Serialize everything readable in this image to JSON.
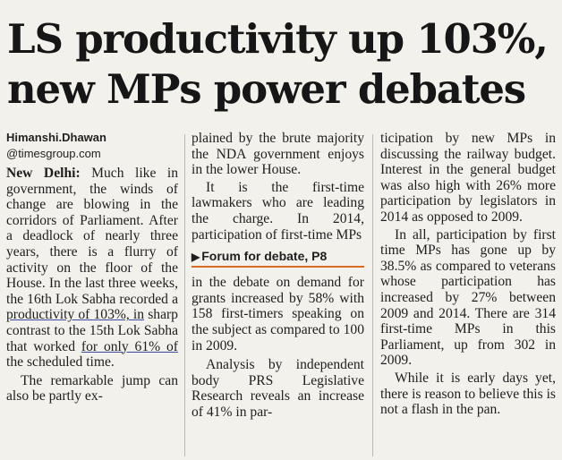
{
  "headline": {
    "line1": "LS productivity up 103%,",
    "line2": "new MPs power debates"
  },
  "byline": {
    "author": "Himanshi.Dhawan",
    "handle": "@timesgroup.com"
  },
  "column1": {
    "dateline": "New Delhi:",
    "p1_text": " Much like in government, the winds of change are blowing in the corridors of Parliament. After a deadlock of nearly three years, there is a flurry of activity on the floor of the House. In the last three weeks, the 16th Lok Sabha recorded a ",
    "p1_underline1": "productivity of 103%, in",
    "p1_mid": " sharp contrast to the 15th Lok Sabha that worked ",
    "p1_underline2": "for only 61% of",
    "p1_end": " the scheduled time.",
    "p2": "The remarkable jump can also be partly ex-"
  },
  "column2": {
    "p1": "plained by the brute majority the NDA government enjoys in the lower House.",
    "p2": "It is the first-time lawmakers who are leading the charge. In 2014, participation of first-time MPs",
    "crossref": "Forum for debate, P8",
    "p3": "in the debate on demand for grants increased by 58% with 158 first-timers speaking on the subject as compared to 100 in 2009.",
    "p4": "Analysis by independent body PRS Legislative Research reveals an increase of 41% in par-"
  },
  "column3": {
    "p1": "ticipation by new MPs in discussing the railway budget. Interest in the general budget was also high with 26% more participation by legislators in 2014 as opposed to 2009.",
    "p2": "In all, participation by first time MPs has gone up by 38.5% as compared to veterans whose participation has increased by 27% between 2009 and 2014. There are 314 first-time MPs in this Parliament, up from 302 in 2009.",
    "p3": "While it is early days yet, there is reason to believe this is not a flash in the pan."
  },
  "colors": {
    "paper": "#f3f1ec",
    "ink": "#1e1e1e",
    "crossref_rule": "#d86a22"
  },
  "icons": {
    "crossref_arrow": "triangle-right-icon"
  }
}
